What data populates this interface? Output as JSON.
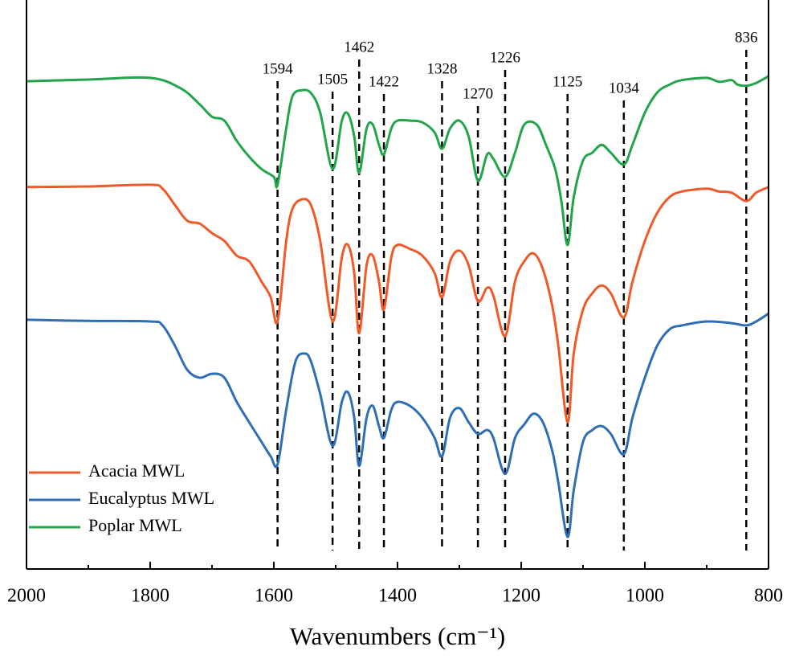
{
  "chart_data": {
    "type": "line",
    "xlabel": "Wavenumbers (cm⁻¹)",
    "xlim": [
      2000,
      800
    ],
    "ylim": [
      0,
      100
    ],
    "xticks": [
      2000,
      1800,
      1600,
      1400,
      1200,
      1000,
      800
    ],
    "xminorticks": [
      1900,
      1700,
      1500,
      1300,
      1100,
      900
    ],
    "peaks": [
      1594,
      1505,
      1462,
      1422,
      1328,
      1270,
      1226,
      1125,
      1034,
      836
    ],
    "legend": "lower left",
    "series": [
      {
        "name": "Acacia MWL",
        "color": "#f05a28",
        "x": [
          2000,
          1900,
          1800,
          1780,
          1760,
          1740,
          1720,
          1700,
          1680,
          1660,
          1640,
          1620,
          1605,
          1594,
          1580,
          1570,
          1555,
          1540,
          1525,
          1505,
          1490,
          1480,
          1470,
          1462,
          1450,
          1440,
          1430,
          1422,
          1410,
          1400,
          1380,
          1360,
          1340,
          1328,
          1315,
          1300,
          1285,
          1270,
          1255,
          1245,
          1226,
          1210,
          1195,
          1180,
          1165,
          1150,
          1140,
          1125,
          1115,
          1100,
          1085,
          1070,
          1055,
          1034,
          1020,
          1000,
          980,
          960,
          940,
          900,
          880,
          860,
          836,
          820,
          800
        ],
        "values": [
          67.9,
          68,
          68.3,
          67.6,
          64.7,
          61.9,
          61.4,
          59.7,
          58.3,
          55.7,
          54.7,
          51.1,
          48.3,
          44,
          58.3,
          64,
          65.7,
          64.7,
          58.3,
          44,
          55.4,
          57.6,
          52.6,
          41.9,
          54,
          55.7,
          51.1,
          46.1,
          55.4,
          57.6,
          56.9,
          55.7,
          52.6,
          48.3,
          54.7,
          56.6,
          54,
          47.6,
          50,
          48.6,
          41.4,
          51.1,
          54.7,
          56.1,
          53.3,
          46.9,
          39.7,
          26.1,
          38.3,
          46.1,
          49,
          50.4,
          49,
          44.7,
          51.1,
          58.3,
          63.3,
          66.1,
          67.1,
          67.6,
          67.1,
          66.9,
          65.4,
          66.9,
          67.9
        ]
      },
      {
        "name": "Eucalyptus MWL",
        "color": "#2f6db5",
        "x": [
          2000,
          1900,
          1800,
          1780,
          1760,
          1740,
          1720,
          1700,
          1680,
          1660,
          1640,
          1620,
          1605,
          1594,
          1580,
          1565,
          1550,
          1540,
          1525,
          1505,
          1490,
          1480,
          1470,
          1462,
          1450,
          1440,
          1430,
          1422,
          1410,
          1400,
          1380,
          1360,
          1340,
          1328,
          1315,
          1300,
          1285,
          1270,
          1255,
          1245,
          1226,
          1210,
          1195,
          1180,
          1165,
          1150,
          1140,
          1125,
          1115,
          1100,
          1085,
          1070,
          1055,
          1034,
          1020,
          1000,
          980,
          960,
          940,
          900,
          860,
          836,
          820,
          800
        ],
        "values": [
          44.3,
          44.1,
          44,
          43.3,
          39.7,
          35.4,
          34,
          34.7,
          34,
          29.7,
          26.1,
          22.6,
          20,
          18.6,
          28.3,
          36.9,
          38.3,
          36.9,
          31.1,
          21.9,
          29.7,
          31.4,
          26.9,
          18.3,
          26.9,
          29,
          25.4,
          23.3,
          28.3,
          29.7,
          29,
          26.9,
          23.3,
          20,
          26.9,
          28.6,
          26.1,
          24,
          24.7,
          23.3,
          16.9,
          23.3,
          25.7,
          27.6,
          26.1,
          21.1,
          15.4,
          5.7,
          14,
          22.6,
          24.7,
          25.4,
          24,
          20.4,
          26.9,
          34,
          39.7,
          42.6,
          43.3,
          44,
          43.7,
          43.3,
          44,
          45.4
        ]
      },
      {
        "name": "Poplar MWL",
        "color": "#22a54a",
        "x": [
          2000,
          1900,
          1800,
          1750,
          1720,
          1700,
          1680,
          1660,
          1640,
          1620,
          1600,
          1594,
          1580,
          1570,
          1555,
          1540,
          1525,
          1505,
          1490,
          1480,
          1470,
          1462,
          1450,
          1440,
          1430,
          1422,
          1410,
          1400,
          1380,
          1360,
          1340,
          1328,
          1315,
          1300,
          1285,
          1270,
          1255,
          1245,
          1226,
          1210,
          1195,
          1175,
          1160,
          1145,
          1135,
          1125,
          1115,
          1100,
          1085,
          1070,
          1055,
          1034,
          1020,
          1000,
          980,
          960,
          940,
          900,
          880,
          860,
          850,
          836,
          820,
          800
        ],
        "values": [
          86.7,
          87,
          87.3,
          85.4,
          82.6,
          80.4,
          79.7,
          76.1,
          73.3,
          71.1,
          69.7,
          68.3,
          78.3,
          84,
          85.1,
          84.6,
          81.1,
          71.1,
          79.7,
          80.9,
          76.9,
          70.4,
          78.3,
          79,
          75.4,
          73.7,
          78.3,
          79.7,
          79.7,
          79.4,
          77.6,
          74.7,
          78.3,
          79.7,
          76.9,
          69,
          73.7,
          72.9,
          69.7,
          74,
          79,
          79,
          75.4,
          71.1,
          65.4,
          57.6,
          66.1,
          72.6,
          74,
          75.4,
          74,
          71.9,
          75.4,
          81.1,
          84.7,
          86.1,
          86.9,
          87.3,
          86.6,
          86.9,
          86.1,
          85.9,
          86.4,
          87.6
        ]
      }
    ]
  }
}
